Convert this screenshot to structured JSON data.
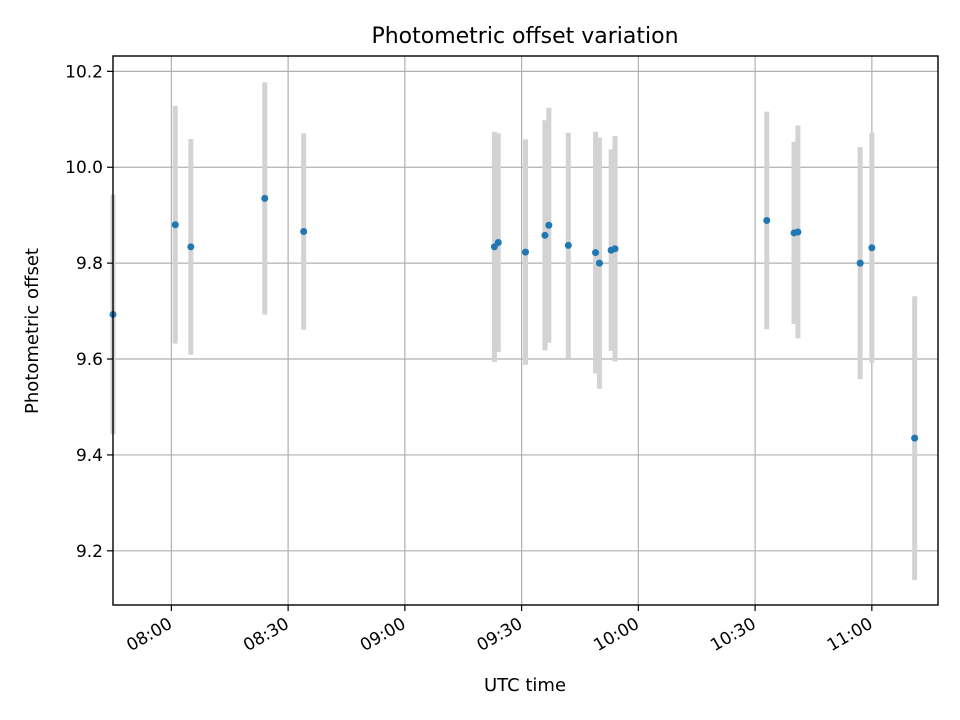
{
  "chart_data": {
    "type": "scatter",
    "title": "Photometric offset variation",
    "xlabel": "UTC time",
    "ylabel": "Photometric offset",
    "x_axis": "time",
    "xlim": [
      "07:49",
      "11:14"
    ],
    "ylim": [
      9.087,
      10.232
    ],
    "xticks": [
      "08:00",
      "08:30",
      "09:00",
      "09:30",
      "10:00",
      "10:30",
      "11:00"
    ],
    "yticks": [
      9.2,
      9.4,
      9.6,
      9.8,
      10.0,
      10.2
    ],
    "grid": true,
    "marker_color": "#1f77b4",
    "errorbar_color": "#d3d3d3",
    "points": [
      {
        "x": "07:45",
        "y": 9.693,
        "yerr": 0.25
      },
      {
        "x": "08:01",
        "y": 9.88,
        "yerr": 0.248
      },
      {
        "x": "08:05",
        "y": 9.834,
        "yerr": 0.225
      },
      {
        "x": "08:24",
        "y": 9.935,
        "yerr": 0.242
      },
      {
        "x": "08:34",
        "y": 9.866,
        "yerr": 0.205
      },
      {
        "x": "09:23",
        "y": 9.834,
        "yerr": 0.24
      },
      {
        "x": "09:24",
        "y": 9.843,
        "yerr": 0.228
      },
      {
        "x": "09:31",
        "y": 9.823,
        "yerr": 0.235
      },
      {
        "x": "09:36",
        "y": 9.858,
        "yerr": 0.24
      },
      {
        "x": "09:37",
        "y": 9.879,
        "yerr": 0.245
      },
      {
        "x": "09:42",
        "y": 9.837,
        "yerr": 0.235
      },
      {
        "x": "09:49",
        "y": 9.822,
        "yerr": 0.252
      },
      {
        "x": "09:50",
        "y": 9.8,
        "yerr": 0.262
      },
      {
        "x": "09:53",
        "y": 9.827,
        "yerr": 0.21
      },
      {
        "x": "09:54",
        "y": 9.83,
        "yerr": 0.235
      },
      {
        "x": "10:33",
        "y": 9.889,
        "yerr": 0.227
      },
      {
        "x": "10:40",
        "y": 9.863,
        "yerr": 0.19
      },
      {
        "x": "10:41",
        "y": 9.865,
        "yerr": 0.222
      },
      {
        "x": "10:57",
        "y": 9.8,
        "yerr": 0.242
      },
      {
        "x": "11:00",
        "y": 9.832,
        "yerr": 0.24
      },
      {
        "x": "11:11",
        "y": 9.435,
        "yerr": 0.296
      }
    ]
  }
}
